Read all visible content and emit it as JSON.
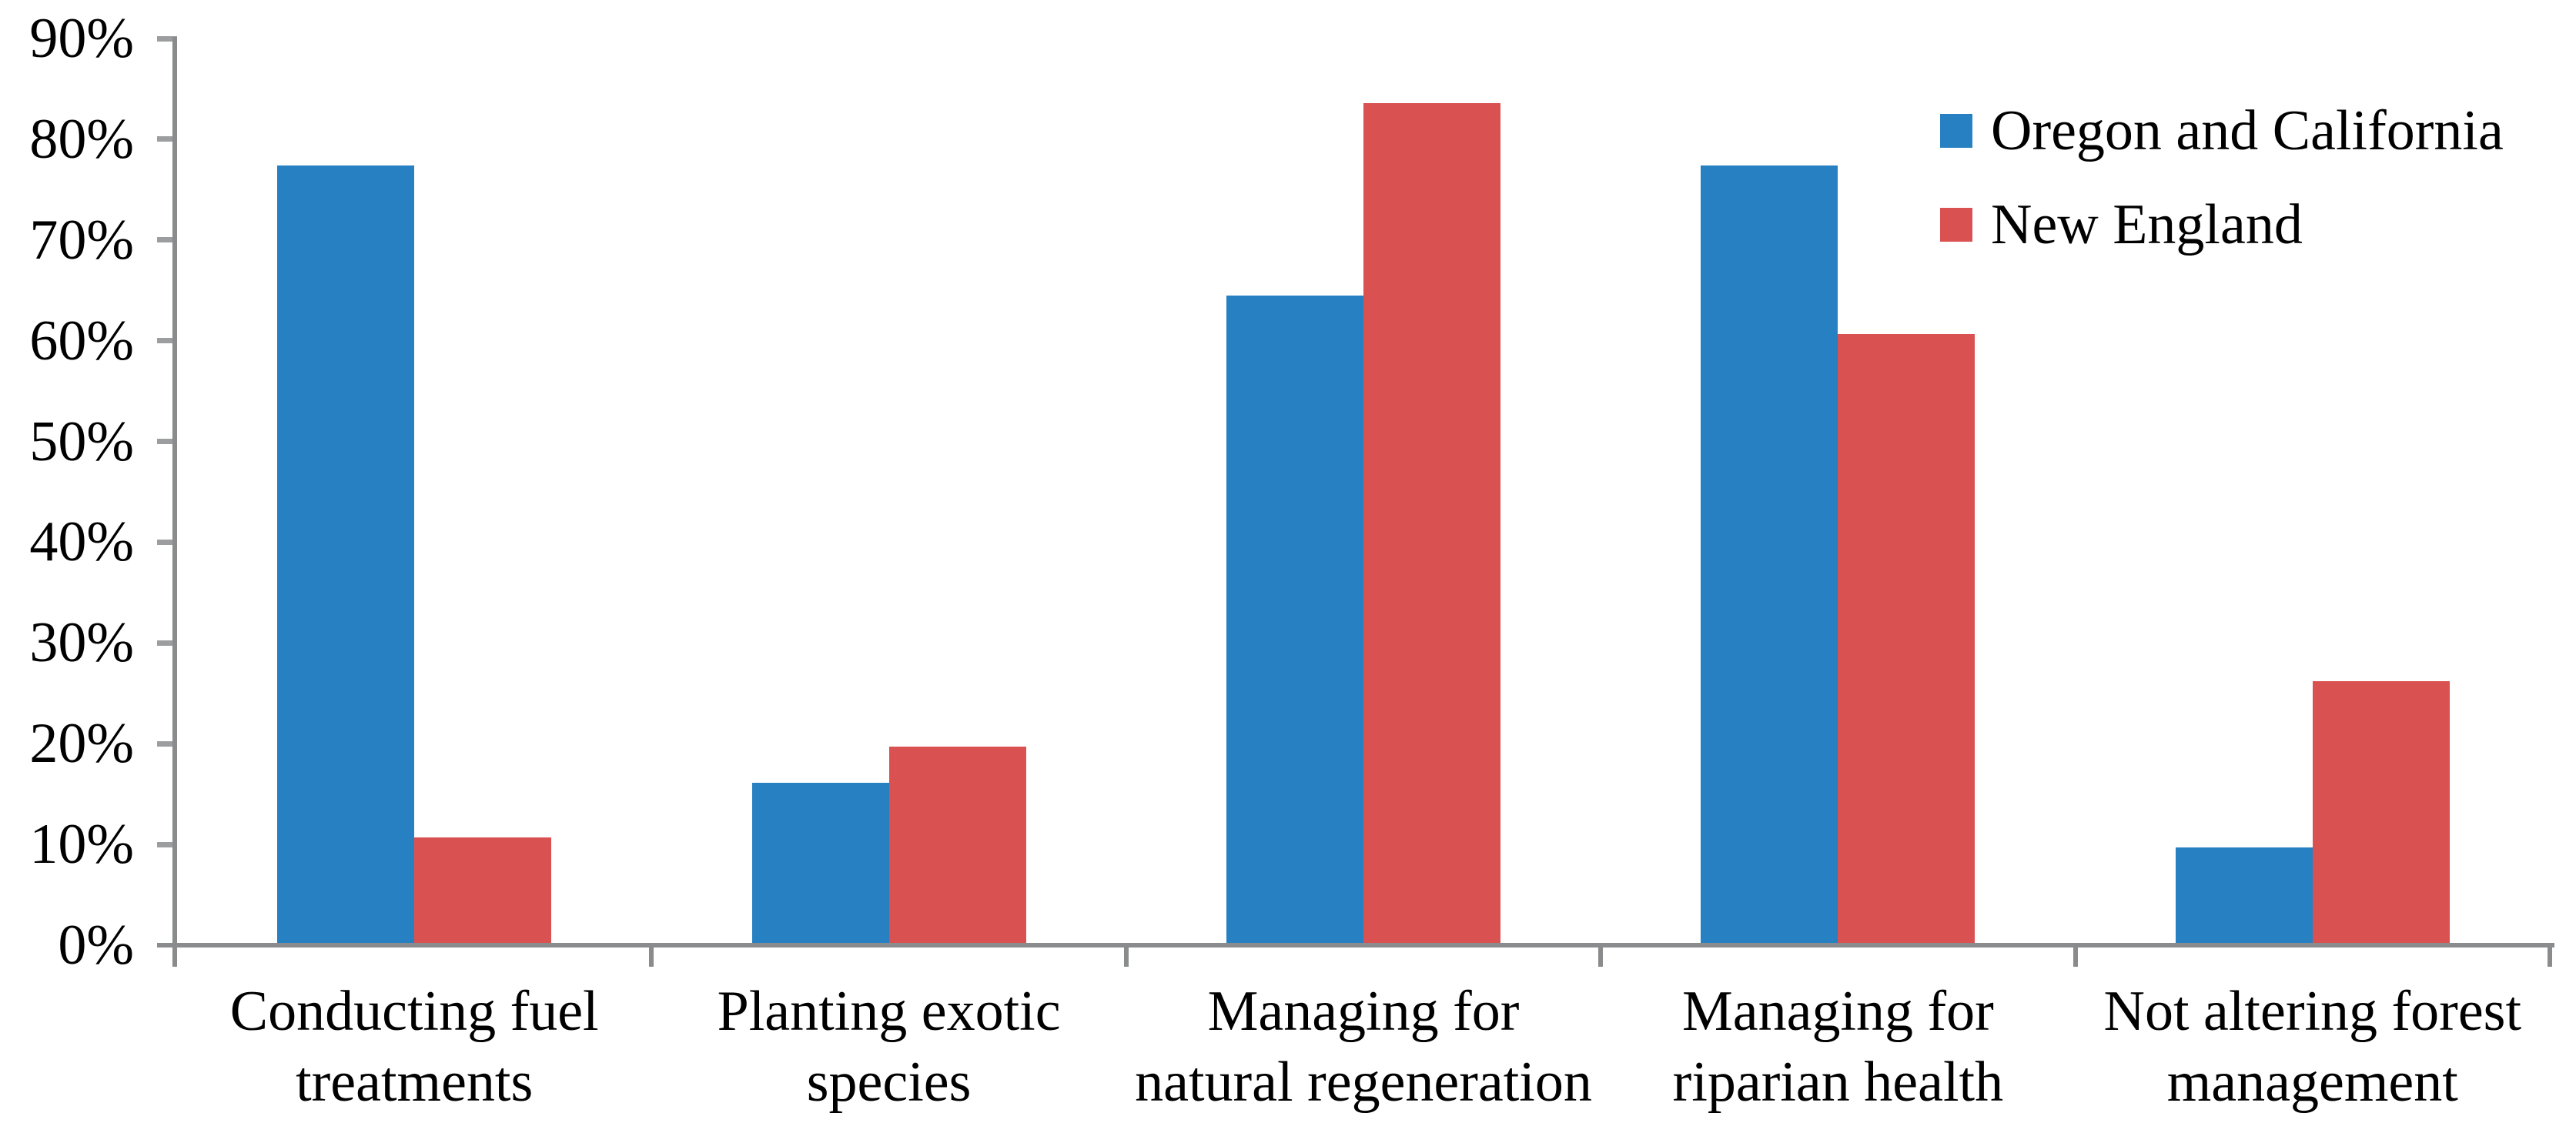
{
  "chart_data": {
    "type": "bar",
    "title": "",
    "categories": [
      "Conducting fuel\ntreatments",
      "Planting exotic\nspecies",
      "Managing for\nnatural regeneration",
      "Managing for\nriparian health",
      "Not altering forest\nmanagement"
    ],
    "series": [
      {
        "name": "Oregon and California",
        "color": "#2680C1",
        "values": [
          77.4,
          16.1,
          64.5,
          77.4,
          9.7
        ]
      },
      {
        "name": "New England",
        "color": "#DA5151",
        "values": [
          10.7,
          19.7,
          83.6,
          60.7,
          26.2
        ]
      }
    ],
    "xlabel": "",
    "ylabel": "",
    "ylim": [
      0,
      90
    ],
    "ytick_step": 10,
    "ytick_labels": [
      "0%",
      "10%",
      "20%",
      "30%",
      "40%",
      "50%",
      "60%",
      "70%",
      "80%",
      "90%"
    ],
    "grid": false,
    "legend_position": "top-right"
  },
  "axis": {
    "line_color": "#8A8B8C",
    "tick_color": "#9C9D9E",
    "text_color": "#000000"
  }
}
